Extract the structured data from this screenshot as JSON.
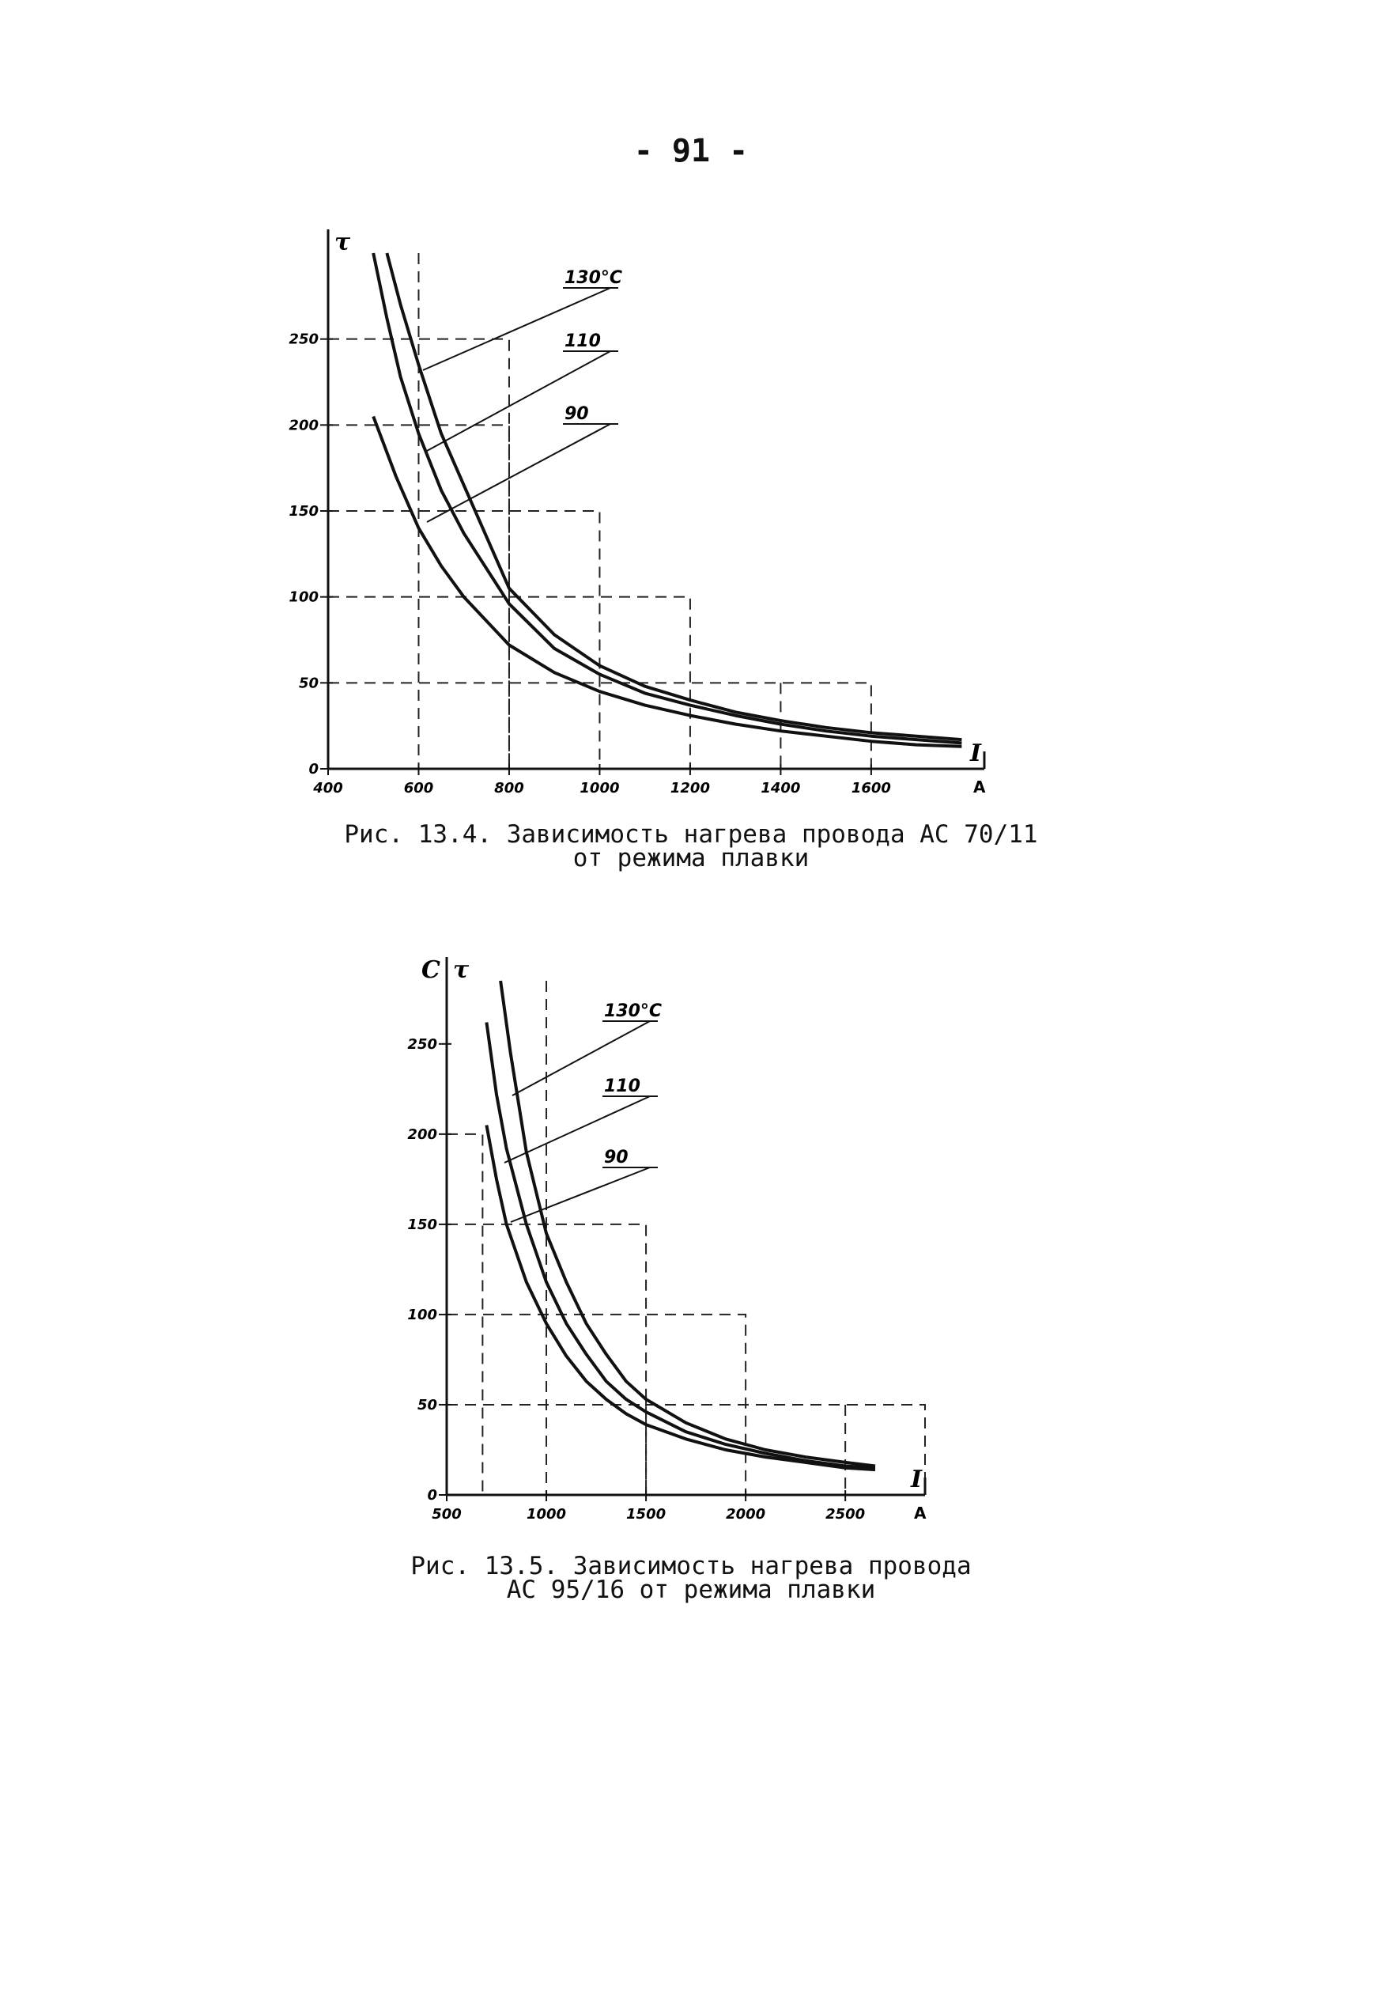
{
  "page_number": "- 91 -",
  "figures": [
    {
      "caption_line1": "Рис. 13.4. Зависимость нагрева провода АС 70/11",
      "caption_line2": "от режима плавки"
    },
    {
      "caption_line1": "Рис. 13.5. Зависимость нагрева провода",
      "caption_line2": "АС 95/16 от режима плавки"
    }
  ],
  "chart_data": [
    {
      "type": "line",
      "title": "",
      "xlabel": "I",
      "xunit": "A",
      "ylabel": "τ",
      "yunit": "",
      "xlim": [
        400,
        1850
      ],
      "ylim": [
        0,
        300
      ],
      "x_ticks": [
        400,
        600,
        800,
        1000,
        1200,
        1400,
        1600
      ],
      "y_ticks": [
        0,
        50,
        100,
        150,
        200,
        250
      ],
      "x_tick_labels": [
        "400",
        "600",
        "800",
        "1000",
        "1200",
        "1400",
        "1600"
      ],
      "y_tick_labels": [
        "0",
        "50",
        "100",
        "150",
        "200",
        "250"
      ],
      "grid": "dashed, partial",
      "legend": "none; series labels with leader lines at top-right",
      "series": [
        {
          "name": "130°C",
          "x": [
            530,
            560,
            600,
            650,
            700,
            800,
            900,
            1000,
            1100,
            1200,
            1300,
            1400,
            1500,
            1600,
            1700,
            1800
          ],
          "y": [
            300,
            270,
            235,
            195,
            165,
            105,
            78,
            60,
            48,
            40,
            33,
            28,
            24,
            21,
            19,
            17
          ]
        },
        {
          "name": "110",
          "x": [
            500,
            530,
            560,
            600,
            650,
            700,
            800,
            900,
            1000,
            1100,
            1200,
            1300,
            1400,
            1500,
            1600,
            1700,
            1800
          ],
          "y": [
            300,
            262,
            228,
            195,
            162,
            137,
            96,
            70,
            55,
            44,
            37,
            31,
            26,
            22,
            19,
            17,
            15
          ]
        },
        {
          "name": "90",
          "x": [
            500,
            550,
            600,
            650,
            700,
            800,
            900,
            1000,
            1100,
            1200,
            1300,
            1400,
            1500,
            1600,
            1700,
            1800
          ],
          "y": [
            205,
            170,
            140,
            118,
            100,
            72,
            56,
            45,
            37,
            31,
            26,
            22,
            19,
            16,
            14,
            13
          ]
        }
      ]
    },
    {
      "type": "line",
      "title": "",
      "xlabel": "I",
      "xunit": "A",
      "ylabel": "τ",
      "yunit": "C",
      "xlim": [
        500,
        2900
      ],
      "ylim": [
        0,
        285
      ],
      "x_ticks": [
        500,
        1000,
        1500,
        2000,
        2500
      ],
      "y_ticks": [
        0,
        50,
        100,
        150,
        200,
        250
      ],
      "x_tick_labels": [
        "500",
        "1000",
        "1500",
        "2000",
        "2500"
      ],
      "y_tick_labels": [
        "0",
        "50",
        "100",
        "150",
        "200",
        "250"
      ],
      "grid": "dashed, partial",
      "legend": "none; series labels with leader lines at top-right",
      "series": [
        {
          "name": "130°C",
          "x": [
            770,
            820,
            900,
            1000,
            1100,
            1200,
            1300,
            1400,
            1500,
            1700,
            1900,
            2100,
            2300,
            2500,
            2650
          ],
          "y": [
            285,
            245,
            190,
            145,
            118,
            95,
            78,
            63,
            53,
            40,
            31,
            25,
            21,
            18,
            16
          ]
        },
        {
          "name": "110",
          "x": [
            700,
            750,
            800,
            900,
            1000,
            1100,
            1200,
            1300,
            1400,
            1500,
            1700,
            1900,
            2100,
            2300,
            2500,
            2650
          ],
          "y": [
            262,
            222,
            192,
            150,
            118,
            95,
            78,
            63,
            53,
            46,
            35,
            28,
            23,
            19,
            16,
            15
          ]
        },
        {
          "name": "90",
          "x": [
            700,
            750,
            800,
            900,
            1000,
            1100,
            1200,
            1300,
            1400,
            1500,
            1700,
            1900,
            2100,
            2300,
            2500,
            2650
          ],
          "y": [
            205,
            175,
            150,
            118,
            95,
            77,
            63,
            53,
            45,
            39,
            31,
            25,
            21,
            18,
            15,
            14
          ]
        }
      ]
    }
  ]
}
